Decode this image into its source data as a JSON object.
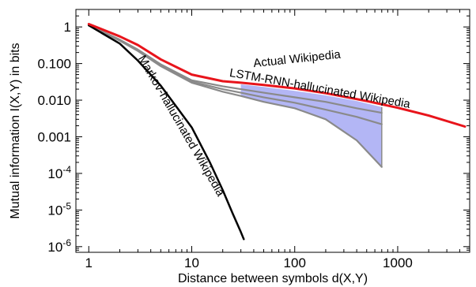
{
  "chart_data": {
    "type": "line",
    "title": "",
    "xlabel": "Distance between symbols d(X,Y)",
    "ylabel": "Mutual information I(X,Y) in bits",
    "xscale": "log",
    "yscale": "log",
    "xlim": [
      0.75,
      5000
    ],
    "ylim": [
      7e-07,
      3
    ],
    "grid": false,
    "x_ticks": [
      {
        "value": 1,
        "label": "1"
      },
      {
        "value": 10,
        "label": "10"
      },
      {
        "value": 100,
        "label": "100"
      },
      {
        "value": 1000,
        "label": "1000"
      }
    ],
    "y_ticks": [
      {
        "value": 1,
        "base": "1",
        "exp": ""
      },
      {
        "value": 0.1,
        "base": "0.100",
        "exp": ""
      },
      {
        "value": 0.01,
        "base": "0.010",
        "exp": ""
      },
      {
        "value": 0.001,
        "base": "0.001",
        "exp": ""
      },
      {
        "value": 0.0001,
        "base": "10",
        "exp": "-4"
      },
      {
        "value": 1e-05,
        "base": "10",
        "exp": "-5"
      },
      {
        "value": 1e-06,
        "base": "10",
        "exp": "-6"
      }
    ],
    "series": [
      {
        "name": "Actual Wikipedia",
        "color": "#e8141b",
        "x": [
          1,
          2,
          3,
          5,
          10,
          20,
          30,
          50,
          100,
          200,
          500,
          1000,
          2000,
          4500
        ],
        "y": [
          1.2,
          0.55,
          0.32,
          0.13,
          0.05,
          0.033,
          0.03,
          0.026,
          0.021,
          0.0155,
          0.0095,
          0.0062,
          0.0038,
          0.0019
        ]
      },
      {
        "name": "LSTM-RNN-hallucinated Wikipedia",
        "color": "#8a8a8a",
        "x": [
          1,
          2,
          3,
          5,
          10,
          20,
          30,
          50,
          100,
          200,
          400,
          700
        ],
        "y": [
          1.1,
          0.45,
          0.24,
          0.095,
          0.035,
          0.024,
          0.02,
          0.016,
          0.012,
          0.009,
          0.006,
          0.0045
        ]
      },
      {
        "name": "",
        "color": "#8a8a8a",
        "x": [
          1,
          2,
          3,
          5,
          10,
          20,
          30,
          50,
          100,
          200,
          400,
          700
        ],
        "y": [
          1.1,
          0.43,
          0.23,
          0.09,
          0.032,
          0.02,
          0.016,
          0.012,
          0.0085,
          0.0055,
          0.0035,
          0.0022
        ]
      },
      {
        "name": "",
        "color": "#8a8a8a",
        "x": [
          1,
          2,
          3,
          5,
          10,
          20,
          30,
          50,
          100,
          200,
          400,
          700
        ],
        "y": [
          1.1,
          0.42,
          0.22,
          0.085,
          0.03,
          0.017,
          0.013,
          0.009,
          0.006,
          0.003,
          0.0008,
          0.00015
        ]
      },
      {
        "name": "Markov-hallucinated Wikipedia",
        "color": "#000000",
        "x": [
          1,
          2,
          3,
          5,
          7,
          10,
          15,
          20,
          25,
          30,
          32
        ],
        "y": [
          1.1,
          0.35,
          0.12,
          0.025,
          0.007,
          0.0018,
          0.0002,
          3.5e-05,
          8e-06,
          2.5e-06,
          1.6e-06
        ]
      }
    ],
    "band": {
      "color": "#b3b6f5",
      "x": [
        30,
        50,
        100,
        200,
        400,
        700
      ],
      "upper": [
        0.027,
        0.023,
        0.018,
        0.0135,
        0.0095,
        0.0065
      ],
      "lower": [
        0.013,
        0.009,
        0.006,
        0.003,
        0.0008,
        0.00015
      ]
    },
    "annotations": [
      {
        "text": "Actual Wikipedia",
        "series": 0,
        "x": 40,
        "y": 0.08,
        "angle": -6
      },
      {
        "text": "LSTM-RNN-hallucinated Wikipedia",
        "series": 1,
        "x": 23,
        "y": 0.045,
        "angle": 10
      },
      {
        "text": "Markov-hallucinated Wikipedia",
        "series": 4,
        "x": 3.0,
        "y": 0.14,
        "angle": 60
      }
    ]
  }
}
